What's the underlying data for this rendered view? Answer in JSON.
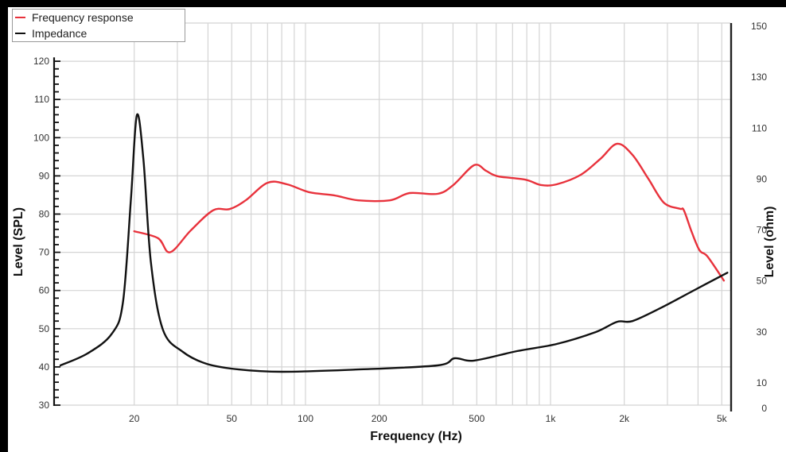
{
  "chart_data": {
    "type": "line",
    "title": "",
    "xlabel": "Frequency (Hz)",
    "ylabel": "Level (SPL)",
    "y2label": "Level (ohm)",
    "xscale": "log",
    "xlim": [
      10,
      5500
    ],
    "ylim": [
      30,
      130
    ],
    "y2lim": [
      0,
      150
    ],
    "grid": true,
    "legend_position": "top-left",
    "x_ticks": [
      {
        "value": 20,
        "label": "20"
      },
      {
        "value": 50,
        "label": "50"
      },
      {
        "value": 100,
        "label": "100"
      },
      {
        "value": 200,
        "label": "200"
      },
      {
        "value": 500,
        "label": "500"
      },
      {
        "value": 1000,
        "label": "1k"
      },
      {
        "value": 2000,
        "label": "2k"
      },
      {
        "value": 5000,
        "label": "5k"
      }
    ],
    "x_gridlines": [
      20,
      30,
      40,
      50,
      60,
      70,
      80,
      90,
      100,
      200,
      300,
      400,
      500,
      600,
      700,
      800,
      900,
      1000,
      2000,
      3000,
      4000,
      5000
    ],
    "y_ticks": [
      30,
      40,
      50,
      60,
      70,
      80,
      90,
      100,
      110,
      120
    ],
    "y2_ticks": [
      0,
      10,
      30,
      50,
      70,
      90,
      110,
      130,
      150
    ],
    "series": [
      {
        "name": "Frequency response",
        "axis": "left",
        "color": "#e8323c",
        "x": [
          20,
          25,
          28,
          34,
          42,
          49,
          57,
          70,
          84,
          104,
          131,
          164,
          221,
          266,
          346,
          401,
          488,
          546,
          610,
          790,
          915,
          1060,
          1330,
          1600,
          1870,
          2160,
          2510,
          2900,
          3370,
          3500,
          3770,
          4060,
          4370,
          5100
        ],
        "y": [
          75.5,
          73.7,
          70,
          75.7,
          81,
          81.3,
          83.6,
          88.2,
          87.8,
          85.7,
          84.9,
          83.6,
          83.6,
          85.5,
          85.3,
          87.6,
          92.8,
          91.3,
          89.9,
          89,
          87.6,
          87.8,
          90.3,
          94.5,
          98.4,
          95.5,
          89.2,
          83,
          81.4,
          81,
          75.3,
          70.5,
          68.9,
          62.6
        ]
      },
      {
        "name": "Impedance",
        "axis": "right",
        "color": "#111111",
        "x": [
          10,
          12.9,
          16.2,
          18,
          19.4,
          20.5,
          21.8,
          23.4,
          26.2,
          31.6,
          39.6,
          53.4,
          80.5,
          164,
          346,
          406,
          488,
          729,
          1060,
          1530,
          1870,
          2160,
          2800,
          3770,
          5270
        ],
        "y": [
          15.6,
          20.3,
          28,
          40.5,
          81,
          113.8,
          96.7,
          56,
          29.6,
          20.9,
          16.2,
          14,
          13.1,
          14,
          15.6,
          18.4,
          17.5,
          21.2,
          24,
          28.7,
          32.7,
          33,
          38,
          44.6,
          52
        ]
      }
    ]
  },
  "legend": {
    "items": [
      {
        "label": "Frequency response",
        "color": "#e8323c"
      },
      {
        "label": "Impedance",
        "color": "#111111"
      }
    ]
  }
}
